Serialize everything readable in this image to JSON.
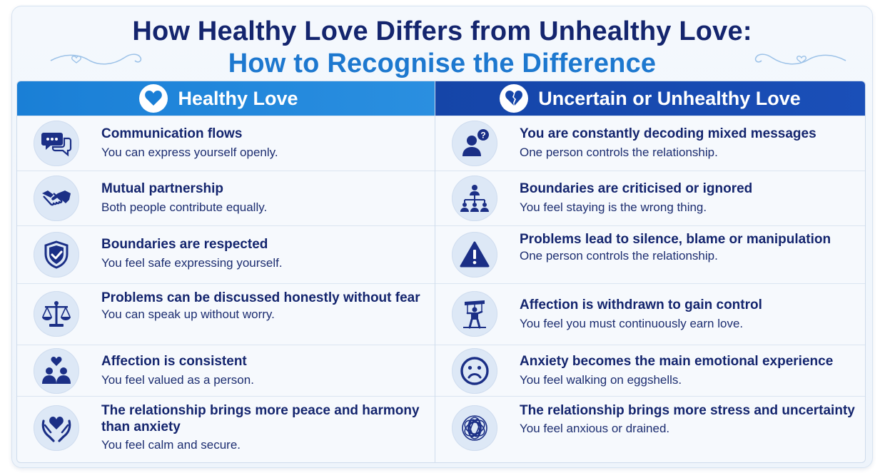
{
  "title": {
    "line1": "How Healthy Love Differs from Unhealthy Love:",
    "line2": "How to Recognise the Difference"
  },
  "colors": {
    "navy": "#14256e",
    "accent_blue": "#1d78cf",
    "healthy_header": "#1a7fd6",
    "unhealthy_header": "#1545a8"
  },
  "healthy": {
    "header": "Healthy Love",
    "header_icon": "heart-icon",
    "items": [
      {
        "icon": "chat-bubbles-icon",
        "heading": "Communication flows",
        "sub": "You can express yourself openly."
      },
      {
        "icon": "handshake-icon",
        "heading": "Mutual partnership",
        "sub": "Both people contribute equally."
      },
      {
        "icon": "shield-check-icon",
        "heading": "Boundaries are respected",
        "sub": "You feel safe expressing yourself."
      },
      {
        "icon": "scales-icon",
        "heading": "Problems can be discussed honestly without fear",
        "sub": "You can speak up without worry."
      },
      {
        "icon": "people-heart-icon",
        "heading": "Affection is consistent",
        "sub": "You feel valued as a person."
      },
      {
        "icon": "hands-heart-icon",
        "heading": "The relationship brings more peace and harmony than anxiety",
        "sub": "You feel calm and secure."
      }
    ]
  },
  "unhealthy": {
    "header": "Uncertain or Unhealthy Love",
    "header_icon": "broken-heart-icon",
    "items": [
      {
        "icon": "person-question-icon",
        "heading": "You are constantly decoding mixed messages",
        "sub": "One person controls the relationship."
      },
      {
        "icon": "hierarchy-icon",
        "heading": "Boundaries are criticised or ignored",
        "sub": "You feel staying is the wrong thing."
      },
      {
        "icon": "warning-icon",
        "heading": "Problems lead to silence, blame or manipulation",
        "sub": "One person controls the relationship."
      },
      {
        "icon": "puppet-icon",
        "heading": "Affection is withdrawn to gain control",
        "sub": "You feel you must continuously earn love."
      },
      {
        "icon": "sad-face-icon",
        "heading": "Anxiety becomes the main emotional experience",
        "sub": "You feel walking on eggshells."
      },
      {
        "icon": "tangle-icon",
        "heading": "The relationship brings more stress and uncertainty",
        "sub": "You feel anxious or drained."
      }
    ]
  }
}
